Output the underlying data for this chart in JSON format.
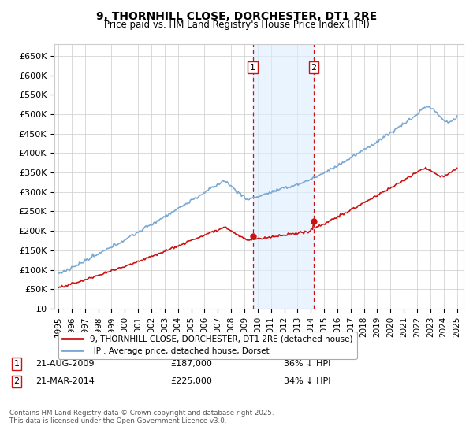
{
  "title": "9, THORNHILL CLOSE, DORCHESTER, DT1 2RE",
  "subtitle": "Price paid vs. HM Land Registry's House Price Index (HPI)",
  "ylabel_ticks": [
    "£0",
    "£50K",
    "£100K",
    "£150K",
    "£200K",
    "£250K",
    "£300K",
    "£350K",
    "£400K",
    "£450K",
    "£500K",
    "£550K",
    "£600K",
    "£650K"
  ],
  "ytick_values": [
    0,
    50000,
    100000,
    150000,
    200000,
    250000,
    300000,
    350000,
    400000,
    450000,
    500000,
    550000,
    600000,
    650000
  ],
  "ylim": [
    0,
    680000
  ],
  "hpi_color": "#7aa8d2",
  "price_color": "#cc1111",
  "sale1_date": "21-AUG-2009",
  "sale1_price": "£187,000",
  "sale1_hpi": "36% ↓ HPI",
  "sale1_year": 2009.64,
  "sale1_value": 187000,
  "sale2_date": "21-MAR-2014",
  "sale2_price": "£225,000",
  "sale2_hpi": "34% ↓ HPI",
  "sale2_year": 2014.22,
  "sale2_value": 225000,
  "legend_line1": "9, THORNHILL CLOSE, DORCHESTER, DT1 2RE (detached house)",
  "legend_line2": "HPI: Average price, detached house, Dorset",
  "footer": "Contains HM Land Registry data © Crown copyright and database right 2025.\nThis data is licensed under the Open Government Licence v3.0.",
  "background_color": "#ffffff",
  "grid_color": "#cccccc",
  "shade_color": "#ddeeff"
}
